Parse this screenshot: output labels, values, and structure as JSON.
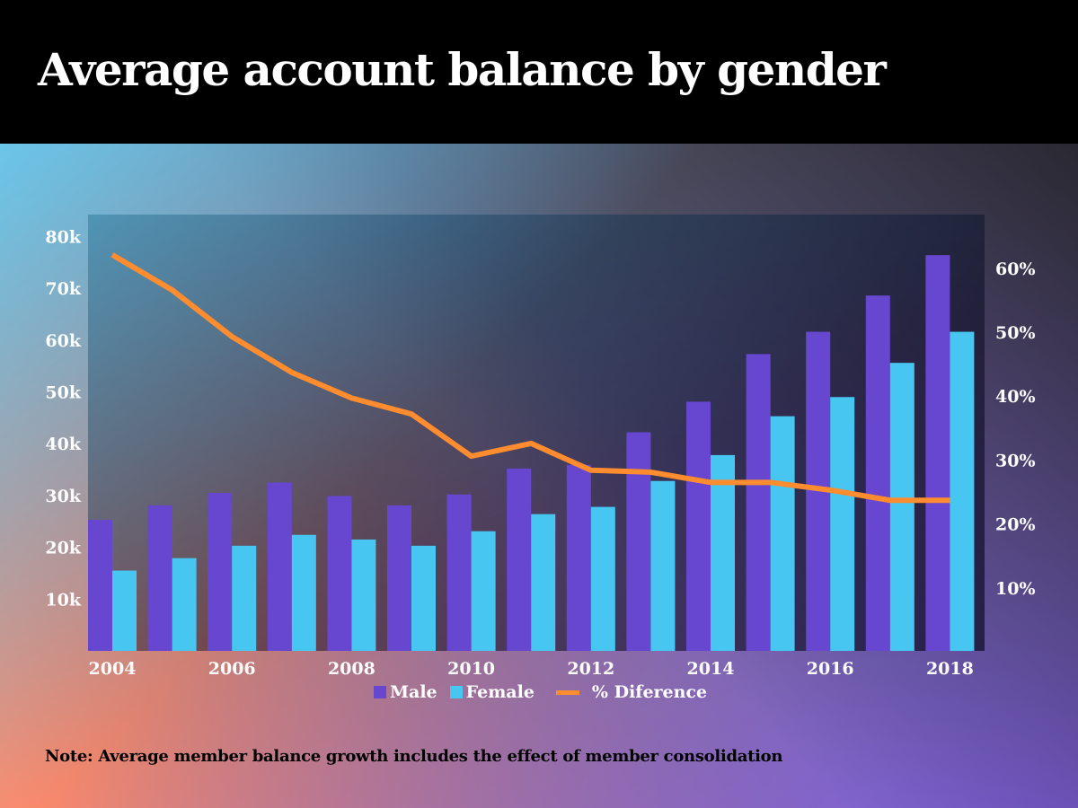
{
  "title": "Average account balance by gender",
  "note": "Note: Average member balance growth includes the effect of member consolidation",
  "colors": {
    "male": "#6747cf",
    "female": "#48c6f2",
    "diff": "#ff8c2e"
  },
  "chart_data": {
    "type": "bar",
    "title": "Average account balance by gender",
    "categories": [
      "2004",
      "2005",
      "2006",
      "2007",
      "2008",
      "2009",
      "2010",
      "2011",
      "2012",
      "2013",
      "2014",
      "2015",
      "2016",
      "2017",
      "2018"
    ],
    "x_tick_labels": [
      "2004",
      "2006",
      "2008",
      "2010",
      "2012",
      "2014",
      "2016",
      "2018"
    ],
    "series": [
      {
        "name": "Male",
        "type": "bar",
        "axis": "left",
        "values": [
          25300,
          28100,
          30500,
          32500,
          29900,
          28100,
          30200,
          35200,
          35900,
          42200,
          48100,
          57300,
          61600,
          68600,
          76400
        ]
      },
      {
        "name": "Female",
        "type": "bar",
        "axis": "left",
        "values": [
          15500,
          17900,
          20300,
          22400,
          21500,
          20300,
          23100,
          26400,
          27800,
          32800,
          37800,
          45300,
          49000,
          55600,
          61600
        ]
      },
      {
        "name": "% Diference",
        "type": "line",
        "axis": "right",
        "values": [
          62.1,
          56.6,
          49.3,
          43.7,
          39.7,
          37.2,
          30.6,
          32.6,
          28.4,
          28.1,
          26.5,
          26.5,
          25.3,
          23.7,
          23.7
        ]
      }
    ],
    "left_axis": {
      "ylim": [
        0,
        84000
      ],
      "ticks": [
        10000,
        20000,
        30000,
        40000,
        50000,
        60000,
        70000,
        80000
      ],
      "tick_labels": [
        "10k",
        "20k",
        "30k",
        "40k",
        "50k",
        "60k",
        "70k",
        "80k"
      ]
    },
    "right_axis": {
      "ylim": [
        0,
        68
      ],
      "ticks": [
        10,
        20,
        30,
        40,
        50,
        60
      ],
      "tick_labels": [
        "10%",
        "20%",
        "30%",
        "40%",
        "50%",
        "60%"
      ]
    },
    "legend": {
      "placement": "bottom",
      "labels": [
        "Male",
        "Female",
        "% Diference"
      ]
    },
    "grid": false
  }
}
